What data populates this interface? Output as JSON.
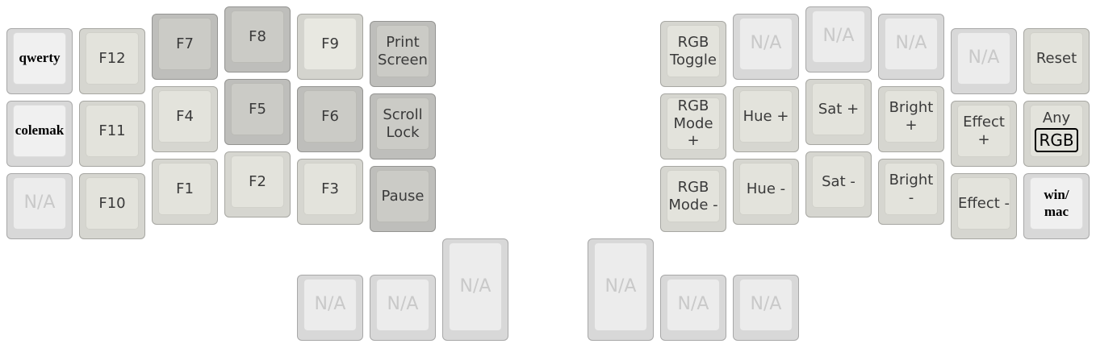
{
  "layout_name": "",
  "colors": {
    "light": "#e3e3dc",
    "mid": "#d5d5cf",
    "dark": "#cbcbc6",
    "na": "#ececec",
    "na_text": "#c9c9c9",
    "text": "#3a3a3a"
  },
  "left_hand": {
    "col1": [
      "qwerty",
      "colemak",
      "N/A"
    ],
    "col2": [
      "F12",
      "F11",
      "F10"
    ],
    "col3": [
      "F7",
      "F4",
      "F1"
    ],
    "col4": [
      "F8",
      "F5",
      "F2"
    ],
    "col5": [
      "F9",
      "F6",
      "F3"
    ],
    "col6": [
      [
        "Print",
        "Screen"
      ],
      [
        "Scroll",
        "Lock"
      ],
      [
        "Pause"
      ]
    ],
    "thumbs": [
      "N/A",
      "N/A",
      "N/A"
    ]
  },
  "right_hand": {
    "col1": [
      [
        "RGB",
        "Toggle"
      ],
      [
        "RGB",
        "Mode",
        "+"
      ],
      [
        "RGB",
        "Mode -"
      ]
    ],
    "col2": [
      "N/A",
      "Hue +",
      "Hue -"
    ],
    "col3": [
      "N/A",
      "Sat +",
      "Sat -"
    ],
    "col4": [
      "N/A",
      [
        "Bright",
        "+"
      ],
      [
        "Bright",
        "-"
      ]
    ],
    "col5": [
      "N/A",
      [
        "Effect",
        "+"
      ],
      "Effect -"
    ],
    "col6": [
      "Reset",
      {
        "top": "Any",
        "boxed": "RGB"
      },
      [
        "win/",
        "mac"
      ]
    ],
    "thumbs": [
      "N/A",
      "N/A",
      "N/A"
    ]
  }
}
